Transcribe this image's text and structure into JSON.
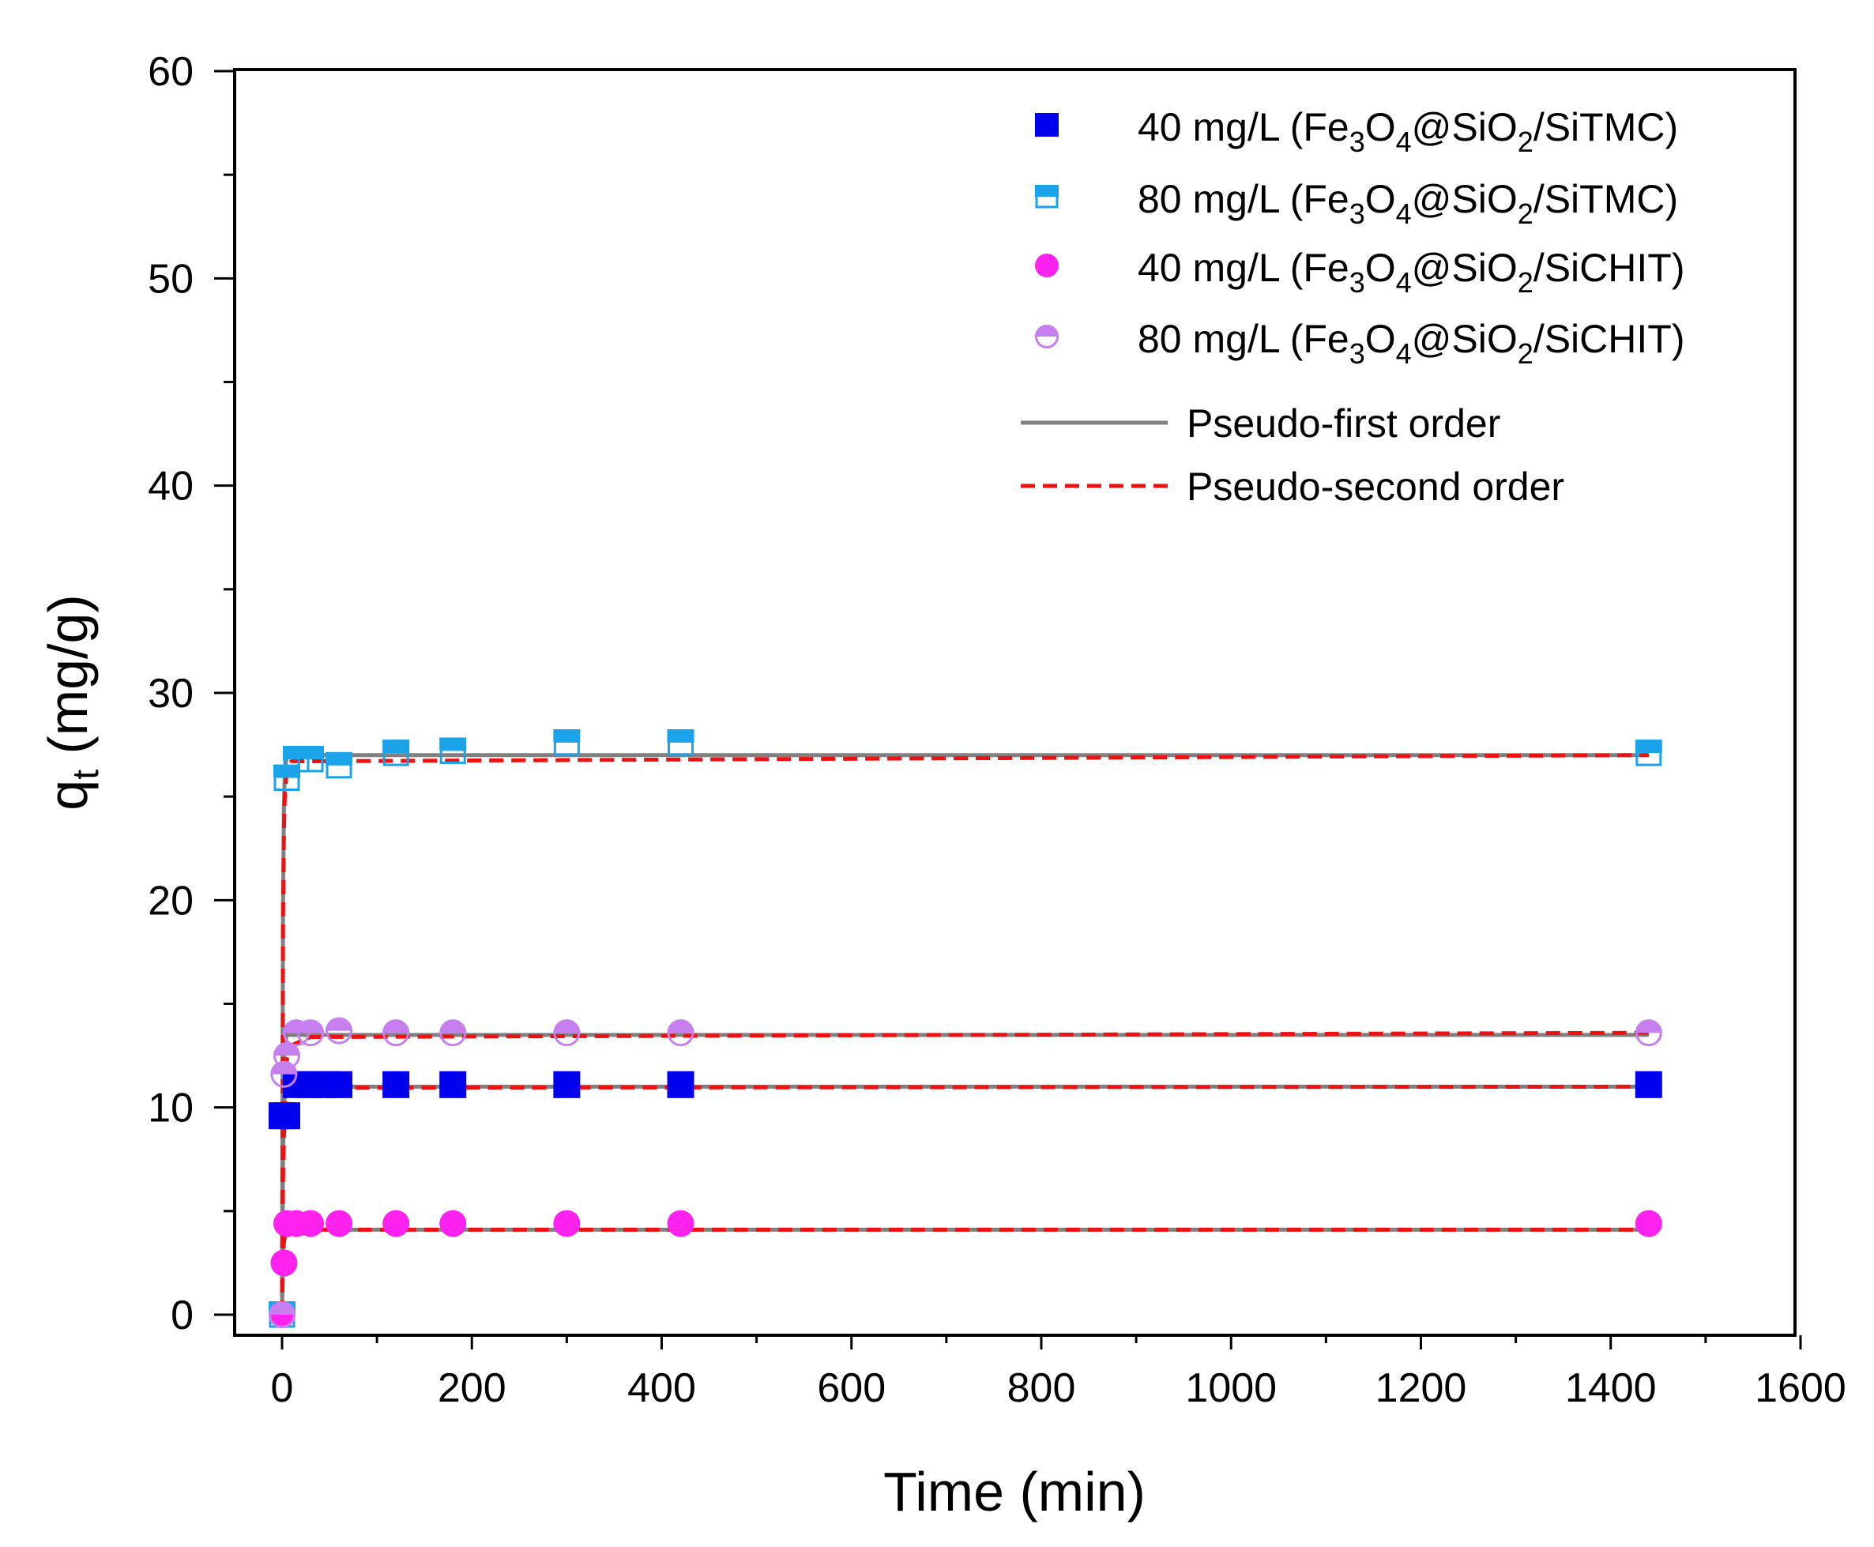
{
  "chart_data": {
    "type": "scatter",
    "title": "",
    "xlabel": "Time (min)",
    "ylabel": "q",
    "ylabel_sub": "t",
    "ylabel_unit": " (mg/g)",
    "xlim": [
      -40,
      1600
    ],
    "ylim": [
      -2,
      60
    ],
    "xticks": [
      0,
      200,
      400,
      600,
      800,
      1000,
      1200,
      1400,
      1600
    ],
    "yticks": [
      0,
      10,
      20,
      30,
      40,
      50,
      60
    ],
    "xticks_minor": [
      100,
      300,
      500,
      700,
      900,
      1100,
      1300,
      1500
    ],
    "yticks_minor": [
      5,
      15,
      25,
      35,
      45,
      55
    ],
    "legend_position": "top-right",
    "series": [
      {
        "name": "40 mg/L (Fe3O4@SiO2/SiTMC)",
        "label_parts": [
          "40 mg/L (Fe",
          "3",
          "O",
          "4",
          "@SiO",
          "2",
          "/SiTMC)"
        ],
        "marker": "square-filled",
        "color": "#0000ee",
        "x": [
          0,
          5,
          15,
          30,
          45,
          60,
          120,
          180,
          300,
          420,
          1440
        ],
        "y": [
          9.6,
          9.6,
          11.1,
          11.1,
          11.1,
          11.1,
          11.1,
          11.1,
          11.1,
          11.1,
          11.1
        ]
      },
      {
        "name": "80 mg/L (Fe3O4@SiO2/SiTMC)",
        "label_parts": [
          "80 mg/L (Fe",
          "3",
          "O",
          "4",
          "@SiO",
          "2",
          "/SiTMC)"
        ],
        "marker": "square-half-top",
        "color": "#1aa3e8",
        "x": [
          0,
          5,
          15,
          30,
          60,
          120,
          180,
          300,
          420,
          1440
        ],
        "y": [
          0,
          25.9,
          26.8,
          26.8,
          26.5,
          27.1,
          27.2,
          27.6,
          27.6,
          27.1
        ]
      },
      {
        "name": "40 mg/L (Fe3O4@SiO2/SiCHIT)",
        "label_parts": [
          "40 mg/L (Fe",
          "3",
          "O",
          "4",
          "@SiO",
          "2",
          "/SiCHIT)"
        ],
        "marker": "circle-filled",
        "color": "#ff22ee",
        "x": [
          0,
          2,
          5,
          15,
          30,
          60,
          120,
          180,
          300,
          420,
          1440
        ],
        "y": [
          0,
          2.5,
          4.4,
          4.4,
          4.4,
          4.4,
          4.4,
          4.4,
          4.4,
          4.4,
          4.4
        ]
      },
      {
        "name": "80 mg/L (Fe3O4@SiO2/SiCHIT)",
        "label_parts": [
          "80 mg/L (Fe",
          "3",
          "O",
          "4",
          "@SiO",
          "2",
          "/SiCHIT)"
        ],
        "marker": "circle-half-top",
        "color": "#c77ff0",
        "x": [
          0,
          2,
          5,
          15,
          30,
          60,
          120,
          180,
          300,
          420,
          1440
        ],
        "y": [
          0,
          11.6,
          12.5,
          13.6,
          13.6,
          13.7,
          13.6,
          13.6,
          13.6,
          13.6,
          13.6
        ]
      }
    ],
    "fits": [
      {
        "name": "Pseudo-first order",
        "style": "solid",
        "color": "#808080",
        "curves": [
          {
            "x": [
              0,
              1,
              2,
              3,
              5,
              10,
              1440
            ],
            "y": [
              0,
              19.5,
              24.6,
              26.3,
              27.0,
              27.0,
              27.0
            ]
          },
          {
            "x": [
              0,
              1,
              2,
              3,
              5,
              10,
              1440
            ],
            "y": [
              0,
              7.3,
              9.9,
              10.7,
              11.0,
              11.0,
              11.0
            ]
          },
          {
            "x": [
              0,
              1,
              2,
              3,
              5,
              10,
              1440
            ],
            "y": [
              0,
              8.9,
              12.2,
              13.1,
              13.5,
              13.5,
              13.5
            ]
          },
          {
            "x": [
              0,
              1,
              2,
              3,
              5,
              10,
              1440
            ],
            "y": [
              0,
              3.0,
              3.8,
              4.1,
              4.1,
              4.1,
              4.1
            ]
          }
        ]
      },
      {
        "name": "Pseudo-second order",
        "style": "dashed",
        "color": "#ee1111",
        "curves": [
          {
            "x": [
              0,
              1,
              2,
              3,
              5,
              10,
              1440
            ],
            "y": [
              0,
              19.0,
              23.5,
              25.2,
              26.2,
              26.7,
              27.0
            ]
          },
          {
            "x": [
              0,
              1,
              2,
              3,
              5,
              10,
              30,
              1440
            ],
            "y": [
              0,
              6.5,
              8.6,
              9.6,
              10.3,
              10.7,
              10.95,
              11.0
            ]
          },
          {
            "x": [
              0,
              1,
              2,
              3,
              5,
              10,
              30,
              1440
            ],
            "y": [
              0,
              7.5,
              10.0,
              11.2,
              12.3,
              13.0,
              13.4,
              13.6
            ]
          },
          {
            "x": [
              0,
              1,
              2,
              3,
              5,
              10,
              1440
            ],
            "y": [
              0,
              2.8,
              3.5,
              3.8,
              4.0,
              4.1,
              4.1
            ]
          }
        ]
      }
    ]
  }
}
